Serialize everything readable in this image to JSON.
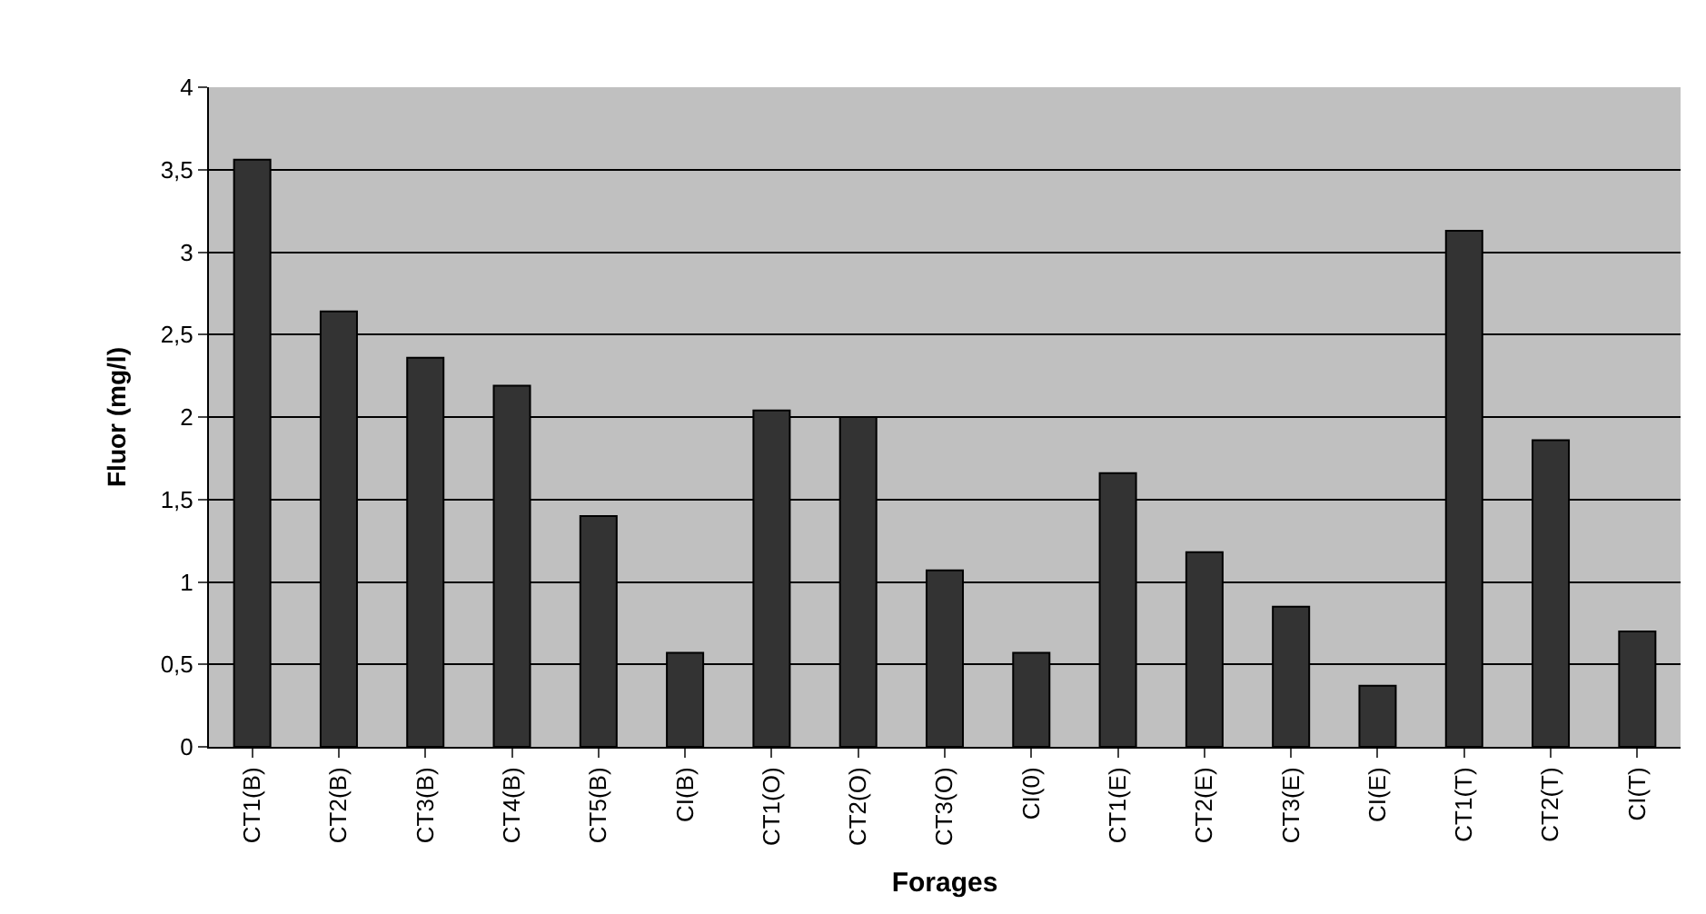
{
  "chart_data": {
    "type": "bar",
    "xlabel": "Forages",
    "ylabel": "Fluor (mg/l)",
    "categories": [
      "CT1(B)",
      "CT2(B)",
      "CT3(B)",
      "CT4(B)",
      "CT5(B)",
      "CI(B)",
      "CT1(O)",
      "CT2(O)",
      "CT3(O)",
      "CI(0)",
      "CT1(E)",
      "CT2(E)",
      "CT3(E)",
      "CI(E)",
      "CT1(T)",
      "CT2(T)",
      "CI(T)"
    ],
    "values": [
      3.56,
      2.64,
      2.36,
      2.19,
      1.4,
      0.57,
      2.04,
      2.0,
      1.07,
      0.57,
      1.66,
      1.18,
      0.85,
      0.37,
      3.13,
      1.86,
      0.7
    ],
    "color": "#333333",
    "ylim": [
      0,
      4
    ],
    "yticks": [
      0,
      {
        "value": 0.5,
        "label": "0,5"
      },
      1,
      {
        "value": 1.5,
        "label": "1,5"
      },
      2,
      {
        "value": 2.5,
        "label": "2,5"
      },
      3,
      {
        "value": 3.5,
        "label": "3,5"
      },
      4
    ],
    "grid": "y"
  }
}
